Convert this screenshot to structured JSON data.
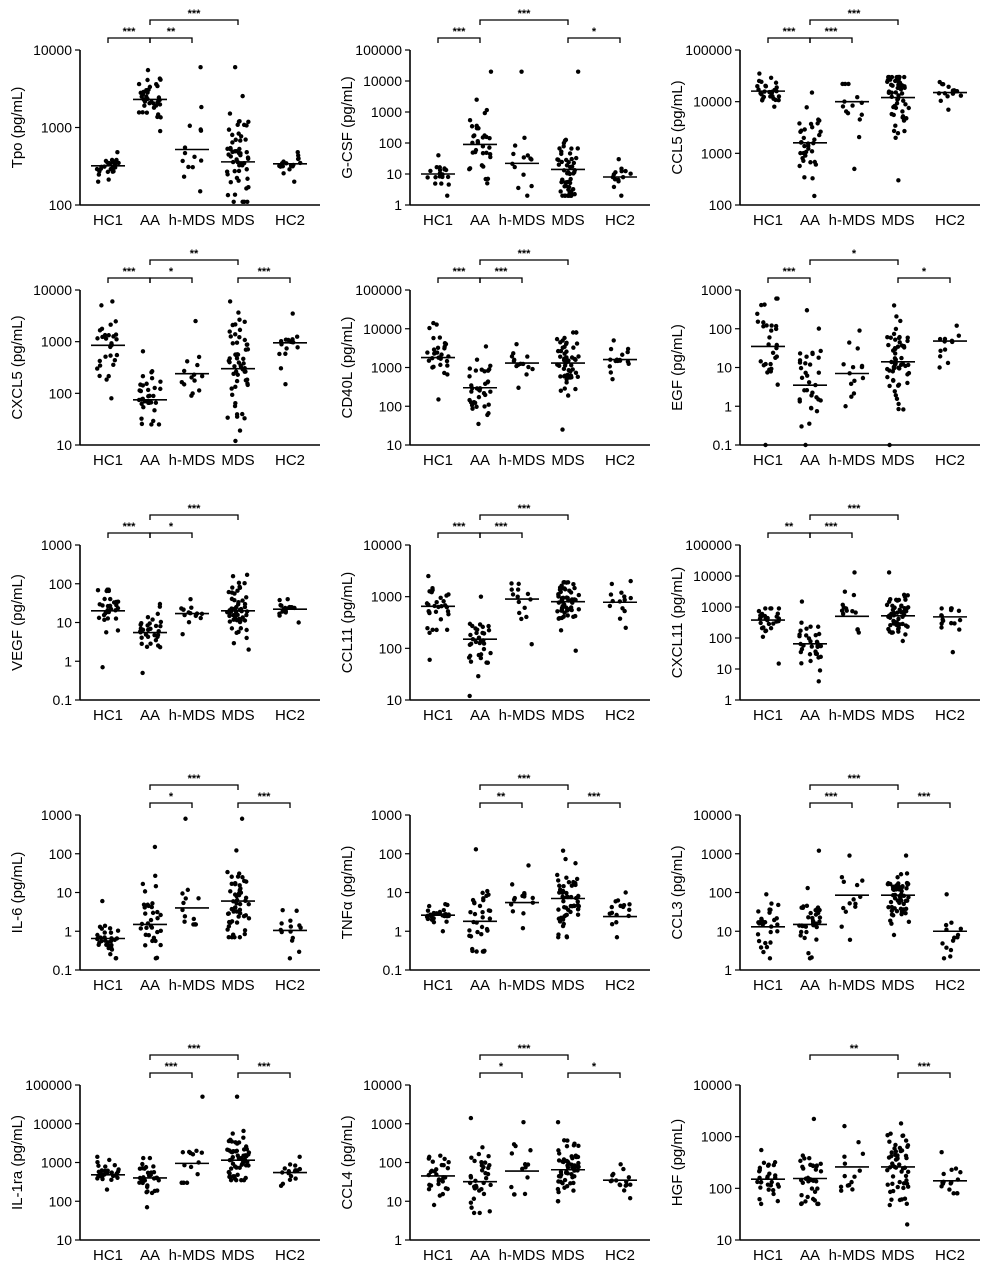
{
  "chart_data": [
    {
      "type": "scatter",
      "ylabel": "Tpo (pg/mL)",
      "yscale": "log",
      "ylim": [
        100,
        10000
      ],
      "yticks": [
        100,
        1000,
        10000
      ],
      "categories": [
        "HC1",
        "AA",
        "h-MDS",
        "MDS",
        "HC2"
      ],
      "groups": [
        {
          "n": 28,
          "median": 320,
          "low": 200,
          "high": 480
        },
        {
          "n": 38,
          "median": 2300,
          "low": 900,
          "high": 5500
        },
        {
          "n": 14,
          "median": 520,
          "low": 150,
          "high": 6000
        },
        {
          "n": 56,
          "median": 360,
          "low": 110,
          "high": 6000
        },
        {
          "n": 17,
          "median": 340,
          "low": 200,
          "high": 480
        }
      ],
      "comparisons": [
        {
          "from": 0,
          "to": 1,
          "label": "***"
        },
        {
          "from": 1,
          "to": 2,
          "label": "**"
        },
        {
          "from": 1,
          "to": 3,
          "label": "***"
        }
      ]
    },
    {
      "type": "scatter",
      "ylabel": "G-CSF (pg/mL)",
      "yscale": "log",
      "ylim": [
        1,
        100000
      ],
      "yticks": [
        1,
        10,
        100,
        1000,
        10000,
        100000
      ],
      "categories": [
        "HC1",
        "AA",
        "h-MDS",
        "MDS",
        "HC2"
      ],
      "groups": [
        {
          "n": 20,
          "median": 10,
          "low": 2,
          "high": 40
        },
        {
          "n": 34,
          "median": 90,
          "low": 5,
          "high": 20000
        },
        {
          "n": 14,
          "median": 22,
          "low": 2,
          "high": 20000
        },
        {
          "n": 56,
          "median": 14,
          "low": 2,
          "high": 20000
        },
        {
          "n": 14,
          "median": 8,
          "low": 2,
          "high": 30
        }
      ],
      "comparisons": [
        {
          "from": 0,
          "to": 1,
          "label": "***"
        },
        {
          "from": 1,
          "to": 3,
          "label": "***"
        },
        {
          "from": 3,
          "to": 4,
          "label": "*"
        }
      ]
    },
    {
      "type": "scatter",
      "ylabel": "CCL5 (pg/mL)",
      "yscale": "log",
      "ylim": [
        100,
        100000
      ],
      "yticks": [
        100,
        1000,
        10000,
        100000
      ],
      "categories": [
        "HC1",
        "AA",
        "h-MDS",
        "MDS",
        "HC2"
      ],
      "groups": [
        {
          "n": 30,
          "median": 16000,
          "low": 8000,
          "high": 35000
        },
        {
          "n": 36,
          "median": 1600,
          "low": 150,
          "high": 15000
        },
        {
          "n": 14,
          "median": 10000,
          "low": 500,
          "high": 22000
        },
        {
          "n": 56,
          "median": 12000,
          "low": 300,
          "high": 30000
        },
        {
          "n": 18,
          "median": 15000,
          "low": 7000,
          "high": 24000
        }
      ],
      "comparisons": [
        {
          "from": 0,
          "to": 1,
          "label": "***"
        },
        {
          "from": 1,
          "to": 2,
          "label": "***"
        },
        {
          "from": 1,
          "to": 3,
          "label": "***"
        }
      ]
    },
    {
      "type": "scatter",
      "ylabel": "CXCL5 (pg/mL)",
      "yscale": "log",
      "ylim": [
        10,
        10000
      ],
      "yticks": [
        10,
        100,
        1000,
        10000
      ],
      "categories": [
        "HC1",
        "AA",
        "h-MDS",
        "MDS",
        "HC2"
      ],
      "groups": [
        {
          "n": 30,
          "median": 850,
          "low": 80,
          "high": 6000
        },
        {
          "n": 34,
          "median": 75,
          "low": 25,
          "high": 650
        },
        {
          "n": 14,
          "median": 240,
          "low": 90,
          "high": 2500
        },
        {
          "n": 56,
          "median": 300,
          "low": 12,
          "high": 6000
        },
        {
          "n": 16,
          "median": 950,
          "low": 150,
          "high": 3500
        }
      ],
      "comparisons": [
        {
          "from": 0,
          "to": 1,
          "label": "***"
        },
        {
          "from": 1,
          "to": 2,
          "label": "*"
        },
        {
          "from": 1,
          "to": 3,
          "label": "**"
        },
        {
          "from": 3,
          "to": 4,
          "label": "***"
        }
      ]
    },
    {
      "type": "scatter",
      "ylabel": "CD40L (pg/mL)",
      "yscale": "log",
      "ylim": [
        10,
        100000
      ],
      "yticks": [
        10,
        100,
        1000,
        10000,
        100000
      ],
      "categories": [
        "HC1",
        "AA",
        "h-MDS",
        "MDS",
        "HC2"
      ],
      "groups": [
        {
          "n": 30,
          "median": 1800,
          "low": 150,
          "high": 14000
        },
        {
          "n": 36,
          "median": 300,
          "low": 35,
          "high": 3500
        },
        {
          "n": 14,
          "median": 1300,
          "low": 300,
          "high": 4000
        },
        {
          "n": 56,
          "median": 1300,
          "low": 25,
          "high": 8000
        },
        {
          "n": 16,
          "median": 1600,
          "low": 500,
          "high": 5000
        }
      ],
      "comparisons": [
        {
          "from": 0,
          "to": 1,
          "label": "***"
        },
        {
          "from": 1,
          "to": 2,
          "label": "***"
        },
        {
          "from": 1,
          "to": 3,
          "label": "***"
        }
      ]
    },
    {
      "type": "scatter",
      "ylabel": "EGF (pg/mL)",
      "yscale": "log",
      "ylim": [
        0.1,
        1000
      ],
      "yticks": [
        0.1,
        1,
        10,
        100,
        1000
      ],
      "categories": [
        "HC1",
        "AA",
        "h-MDS",
        "MDS",
        "HC2"
      ],
      "groups": [
        {
          "n": 30,
          "median": 35,
          "low": 0.1,
          "high": 600
        },
        {
          "n": 34,
          "median": 3.5,
          "low": 0.1,
          "high": 300
        },
        {
          "n": 14,
          "median": 7,
          "low": 1,
          "high": 90
        },
        {
          "n": 56,
          "median": 14,
          "low": 0.1,
          "high": 400
        },
        {
          "n": 12,
          "median": 48,
          "low": 10,
          "high": 120
        }
      ],
      "comparisons": [
        {
          "from": 0,
          "to": 1,
          "label": "***"
        },
        {
          "from": 1,
          "to": 3,
          "label": "*"
        },
        {
          "from": 3,
          "to": 4,
          "label": "*"
        }
      ]
    },
    {
      "type": "scatter",
      "ylabel": "VEGF (pg/mL)",
      "yscale": "log",
      "ylim": [
        0.1,
        1000
      ],
      "yticks": [
        0.1,
        1,
        10,
        100,
        1000
      ],
      "categories": [
        "HC1",
        "AA",
        "h-MDS",
        "MDS",
        "HC2"
      ],
      "groups": [
        {
          "n": 30,
          "median": 20,
          "low": 0.7,
          "high": 70
        },
        {
          "n": 32,
          "median": 5.5,
          "low": 0.5,
          "high": 30
        },
        {
          "n": 14,
          "median": 17,
          "low": 5,
          "high": 40
        },
        {
          "n": 56,
          "median": 20,
          "low": 2,
          "high": 170
        },
        {
          "n": 16,
          "median": 22,
          "low": 10,
          "high": 40
        }
      ],
      "comparisons": [
        {
          "from": 0,
          "to": 1,
          "label": "***"
        },
        {
          "from": 1,
          "to": 2,
          "label": "*"
        },
        {
          "from": 1,
          "to": 3,
          "label": "***"
        }
      ]
    },
    {
      "type": "scatter",
      "ylabel": "CCL11 (pg/mL)",
      "yscale": "log",
      "ylim": [
        10,
        10000
      ],
      "yticks": [
        10,
        100,
        1000,
        10000
      ],
      "categories": [
        "HC1",
        "AA",
        "h-MDS",
        "MDS",
        "HC2"
      ],
      "groups": [
        {
          "n": 30,
          "median": 650,
          "low": 60,
          "high": 2500
        },
        {
          "n": 34,
          "median": 150,
          "low": 12,
          "high": 1000
        },
        {
          "n": 14,
          "median": 900,
          "low": 120,
          "high": 1800
        },
        {
          "n": 56,
          "median": 800,
          "low": 90,
          "high": 1900
        },
        {
          "n": 14,
          "median": 780,
          "low": 250,
          "high": 2000
        }
      ],
      "comparisons": [
        {
          "from": 0,
          "to": 1,
          "label": "***"
        },
        {
          "from": 1,
          "to": 2,
          "label": "***"
        },
        {
          "from": 1,
          "to": 3,
          "label": "***"
        }
      ]
    },
    {
      "type": "scatter",
      "ylabel": "CXCL11 (pg/mL)",
      "yscale": "log",
      "ylim": [
        1,
        100000
      ],
      "yticks": [
        1,
        10,
        100,
        1000,
        10000,
        100000
      ],
      "categories": [
        "HC1",
        "AA",
        "h-MDS",
        "MDS",
        "HC2"
      ],
      "groups": [
        {
          "n": 30,
          "median": 380,
          "low": 15,
          "high": 900
        },
        {
          "n": 34,
          "median": 65,
          "low": 4,
          "high": 1500
        },
        {
          "n": 14,
          "median": 500,
          "low": 150,
          "high": 13000
        },
        {
          "n": 56,
          "median": 520,
          "low": 80,
          "high": 13000
        },
        {
          "n": 16,
          "median": 480,
          "low": 35,
          "high": 900
        }
      ],
      "comparisons": [
        {
          "from": 0,
          "to": 1,
          "label": "**"
        },
        {
          "from": 1,
          "to": 2,
          "label": "***"
        },
        {
          "from": 1,
          "to": 3,
          "label": "***"
        }
      ]
    },
    {
      "type": "scatter",
      "ylabel": "IL-6 (pg/mL)",
      "yscale": "log",
      "ylim": [
        0.1,
        1000
      ],
      "yticks": [
        0.1,
        1,
        10,
        100,
        1000
      ],
      "categories": [
        "HC1",
        "AA",
        "h-MDS",
        "MDS",
        "HC2"
      ],
      "groups": [
        {
          "n": 30,
          "median": 0.65,
          "low": 0.2,
          "high": 6
        },
        {
          "n": 34,
          "median": 1.5,
          "low": 0.2,
          "high": 150
        },
        {
          "n": 14,
          "median": 4,
          "low": 1.5,
          "high": 800
        },
        {
          "n": 56,
          "median": 6,
          "low": 0.7,
          "high": 800
        },
        {
          "n": 14,
          "median": 1.05,
          "low": 0.2,
          "high": 3.5
        }
      ],
      "comparisons": [
        {
          "from": 1,
          "to": 2,
          "label": "*"
        },
        {
          "from": 1,
          "to": 3,
          "label": "***"
        },
        {
          "from": 3,
          "to": 4,
          "label": "***"
        }
      ]
    },
    {
      "type": "scatter",
      "ylabel": "TNFα (pg/mL)",
      "yscale": "log",
      "ylim": [
        0.1,
        1000
      ],
      "yticks": [
        0.1,
        1,
        10,
        100,
        1000
      ],
      "categories": [
        "HC1",
        "AA",
        "h-MDS",
        "MDS",
        "HC2"
      ],
      "groups": [
        {
          "n": 28,
          "median": 2.6,
          "low": 1,
          "high": 5
        },
        {
          "n": 34,
          "median": 1.8,
          "low": 0.3,
          "high": 130
        },
        {
          "n": 14,
          "median": 5.5,
          "low": 1.2,
          "high": 50
        },
        {
          "n": 56,
          "median": 7,
          "low": 0.7,
          "high": 120
        },
        {
          "n": 16,
          "median": 2.4,
          "low": 0.7,
          "high": 10
        }
      ],
      "comparisons": [
        {
          "from": 1,
          "to": 2,
          "label": "**"
        },
        {
          "from": 1,
          "to": 3,
          "label": "***"
        },
        {
          "from": 3,
          "to": 4,
          "label": "***"
        }
      ]
    },
    {
      "type": "scatter",
      "ylabel": "CCL3 (pg/mL)",
      "yscale": "log",
      "ylim": [
        1,
        10000
      ],
      "yticks": [
        1,
        10,
        100,
        1000,
        10000
      ],
      "categories": [
        "HC1",
        "AA",
        "h-MDS",
        "MDS",
        "HC2"
      ],
      "groups": [
        {
          "n": 30,
          "median": 13,
          "low": 2,
          "high": 90
        },
        {
          "n": 34,
          "median": 15,
          "low": 2,
          "high": 1200
        },
        {
          "n": 14,
          "median": 85,
          "low": 6,
          "high": 900
        },
        {
          "n": 56,
          "median": 85,
          "low": 8,
          "high": 900
        },
        {
          "n": 14,
          "median": 10,
          "low": 2,
          "high": 90
        }
      ],
      "comparisons": [
        {
          "from": 1,
          "to": 2,
          "label": "***"
        },
        {
          "from": 1,
          "to": 3,
          "label": "***"
        },
        {
          "from": 3,
          "to": 4,
          "label": "***"
        }
      ]
    },
    {
      "type": "scatter",
      "ylabel": "IL-1ra (pg/mL)",
      "yscale": "log",
      "ylim": [
        10,
        100000
      ],
      "yticks": [
        10,
        100,
        1000,
        10000,
        100000
      ],
      "categories": [
        "HC1",
        "AA",
        "h-MDS",
        "MDS",
        "HC2"
      ],
      "groups": [
        {
          "n": 30,
          "median": 480,
          "low": 200,
          "high": 1400
        },
        {
          "n": 32,
          "median": 400,
          "low": 70,
          "high": 1300
        },
        {
          "n": 14,
          "median": 950,
          "low": 300,
          "high": 50000
        },
        {
          "n": 56,
          "median": 1150,
          "low": 350,
          "high": 50000
        },
        {
          "n": 16,
          "median": 550,
          "low": 250,
          "high": 1400
        }
      ],
      "comparisons": [
        {
          "from": 1,
          "to": 2,
          "label": "***"
        },
        {
          "from": 1,
          "to": 3,
          "label": "***"
        },
        {
          "from": 3,
          "to": 4,
          "label": "***"
        }
      ]
    },
    {
      "type": "scatter",
      "ylabel": "CCL4 (pg/mL)",
      "yscale": "log",
      "ylim": [
        1,
        10000
      ],
      "yticks": [
        1,
        10,
        100,
        1000,
        10000
      ],
      "categories": [
        "HC1",
        "AA",
        "h-MDS",
        "MDS",
        "HC2"
      ],
      "groups": [
        {
          "n": 30,
          "median": 45,
          "low": 8,
          "high": 150
        },
        {
          "n": 36,
          "median": 32,
          "low": 5,
          "high": 1400
        },
        {
          "n": 14,
          "median": 60,
          "low": 15,
          "high": 1100
        },
        {
          "n": 56,
          "median": 65,
          "low": 10,
          "high": 1100
        },
        {
          "n": 16,
          "median": 35,
          "low": 12,
          "high": 90
        }
      ],
      "comparisons": [
        {
          "from": 1,
          "to": 2,
          "label": "*"
        },
        {
          "from": 1,
          "to": 3,
          "label": "***"
        },
        {
          "from": 3,
          "to": 4,
          "label": "*"
        }
      ]
    },
    {
      "type": "scatter",
      "ylabel": "HGF (pg/mL)",
      "yscale": "log",
      "ylim": [
        10,
        10000
      ],
      "yticks": [
        10,
        100,
        1000,
        10000
      ],
      "categories": [
        "HC1",
        "AA",
        "h-MDS",
        "MDS",
        "HC2"
      ],
      "groups": [
        {
          "n": 30,
          "median": 150,
          "low": 50,
          "high": 550
        },
        {
          "n": 36,
          "median": 155,
          "low": 50,
          "high": 2200
        },
        {
          "n": 14,
          "median": 260,
          "low": 90,
          "high": 1600
        },
        {
          "n": 56,
          "median": 260,
          "low": 20,
          "high": 1800
        },
        {
          "n": 16,
          "median": 140,
          "low": 80,
          "high": 500
        }
      ],
      "comparisons": [
        {
          "from": 1,
          "to": 3,
          "label": "**"
        },
        {
          "from": 3,
          "to": 4,
          "label": "***"
        }
      ]
    }
  ]
}
